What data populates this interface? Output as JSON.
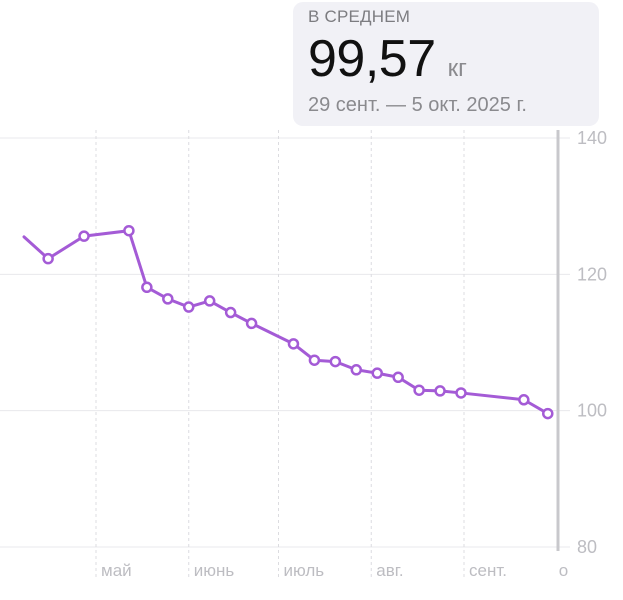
{
  "summary": {
    "label": "В СРЕДНЕМ",
    "value": "99,57",
    "unit": "кг",
    "period": "29 сент. — 5 окт. 2025 г."
  },
  "colors": {
    "line": "#a45bd6",
    "grid": "#e8e8ec",
    "axis_labels": "#bdbdc2",
    "selection": "#c8c8cc",
    "card_background": "#f1f1f6"
  },
  "chart_data": {
    "type": "line",
    "ylim": [
      80,
      140
    ],
    "y_ticks": [
      "80",
      "100",
      "120",
      "140"
    ],
    "x_ticks": [
      "май",
      "июнь",
      "июль",
      "авг.",
      "сент.",
      "о"
    ],
    "grid": true,
    "series": [
      {
        "values": [
          {
            "x": "2025-04-01",
            "y": 125.5
          },
          {
            "x": "2025-04-15",
            "y": 122.3
          },
          {
            "x": "2025-04-27",
            "y": 125.6
          },
          {
            "x": "2025-05-12",
            "y": 126.4
          },
          {
            "x": "2025-05-18",
            "y": 118.1
          },
          {
            "x": "2025-05-25",
            "y": 116.4
          },
          {
            "x": "2025-06-01",
            "y": 115.2
          },
          {
            "x": "2025-06-08",
            "y": 116.1
          },
          {
            "x": "2025-06-15",
            "y": 114.4
          },
          {
            "x": "2025-06-22",
            "y": 112.8
          },
          {
            "x": "2025-07-06",
            "y": 109.8
          },
          {
            "x": "2025-07-13",
            "y": 107.4
          },
          {
            "x": "2025-07-20",
            "y": 107.2
          },
          {
            "x": "2025-07-27",
            "y": 106.0
          },
          {
            "x": "2025-08-03",
            "y": 105.5
          },
          {
            "x": "2025-08-10",
            "y": 104.9
          },
          {
            "x": "2025-08-17",
            "y": 103.0
          },
          {
            "x": "2025-08-24",
            "y": 102.9
          },
          {
            "x": "2025-08-31",
            "y": 102.6
          },
          {
            "x": "2025-09-21",
            "y": 101.6
          },
          {
            "x": "2025-09-29",
            "y": 99.57
          }
        ]
      }
    ]
  }
}
